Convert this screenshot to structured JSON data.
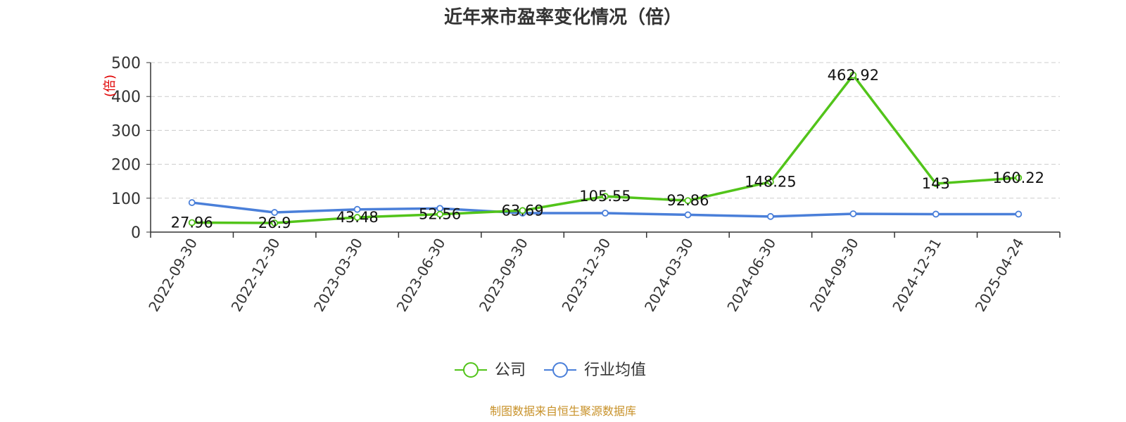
{
  "chart_data": {
    "type": "line",
    "title": "近年来市盈率变化情况（倍）",
    "ylabel": "(倍)",
    "xlabel": "",
    "ylim": [
      0,
      500
    ],
    "yticks": [
      0,
      100,
      200,
      300,
      400,
      500
    ],
    "grid": true,
    "legend_position": "bottom",
    "categories": [
      "2022-09-30",
      "2022-12-30",
      "2023-03-30",
      "2023-06-30",
      "2023-09-30",
      "2023-12-30",
      "2024-03-30",
      "2024-06-30",
      "2024-09-30",
      "2024-12-31",
      "2025-04-24"
    ],
    "series": [
      {
        "name": "公司",
        "color": "#52c41a",
        "values": [
          27.96,
          26.9,
          43.48,
          52.56,
          63.69,
          105.55,
          92.86,
          148.25,
          462.92,
          143,
          160.22
        ],
        "labels": [
          "27.96",
          "26.9",
          "43.48",
          "52.56",
          "63.69",
          "105.55",
          "92.86",
          "148.25",
          "462.92",
          "143",
          "160.22"
        ]
      },
      {
        "name": "行业均值",
        "color": "#4a7fd9",
        "values": [
          87,
          58,
          67,
          70,
          56,
          56,
          51,
          46,
          54,
          53,
          53
        ]
      }
    ],
    "source": "制图数据来自恒生聚源数据库"
  }
}
